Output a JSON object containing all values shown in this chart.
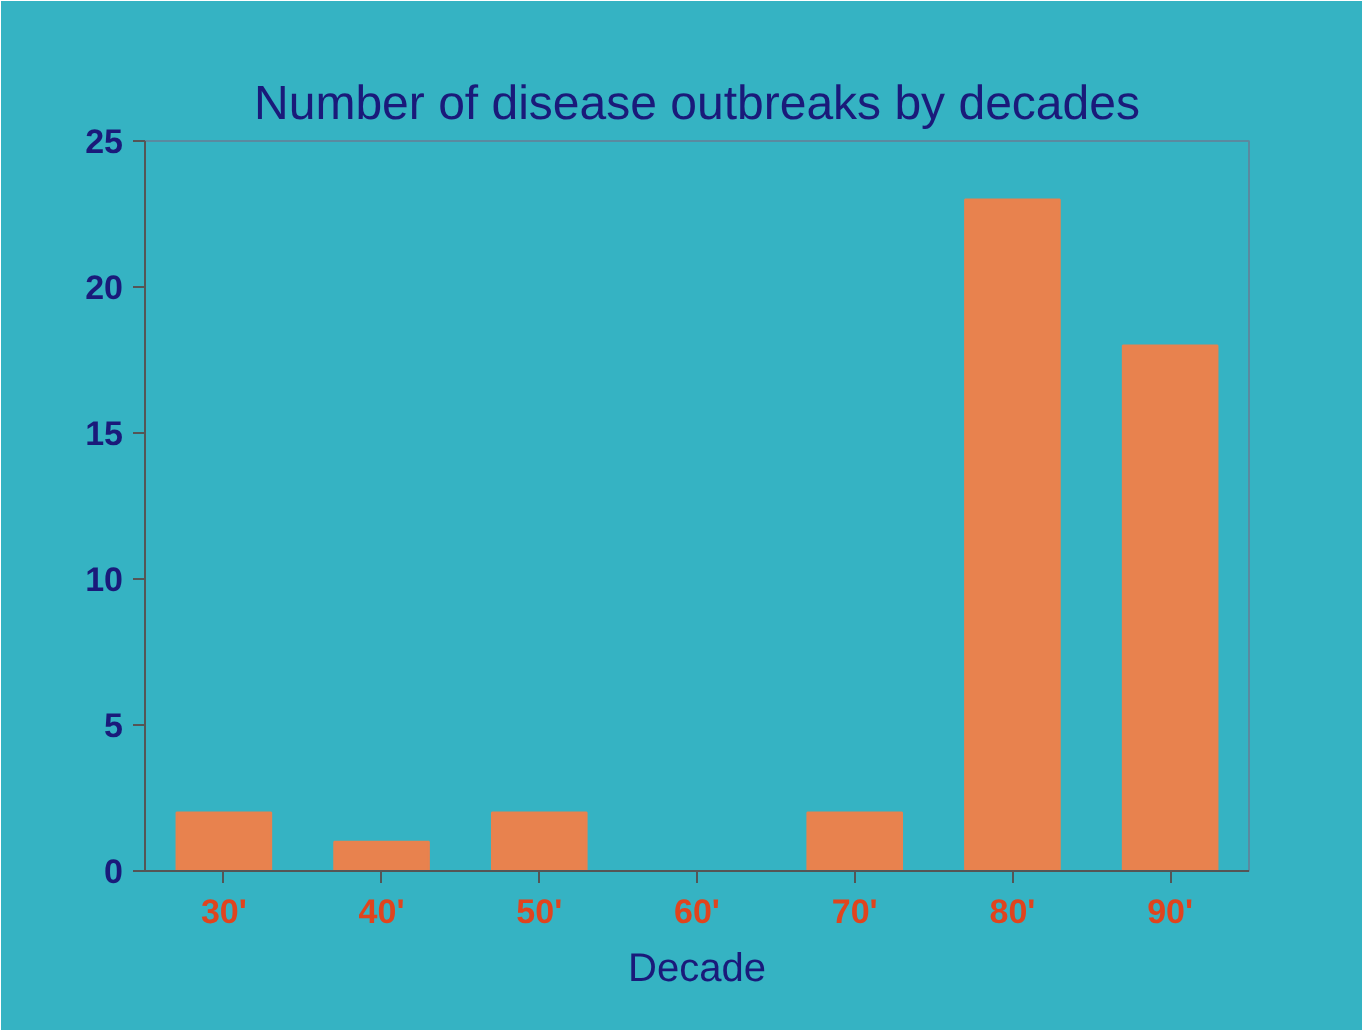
{
  "chart_data": {
    "type": "bar",
    "title": "Number of disease outbreaks by decades",
    "xlabel": "Decade",
    "categories": [
      "30'",
      "40'",
      "50'",
      "60'",
      "70'",
      "80'",
      "90'"
    ],
    "values": [
      2,
      1,
      2,
      0,
      2,
      23,
      18
    ],
    "color": "#e8824e",
    "ylim": [
      0,
      25
    ],
    "yticks": [
      0,
      5,
      10,
      15,
      20,
      25
    ],
    "grid": false
  }
}
